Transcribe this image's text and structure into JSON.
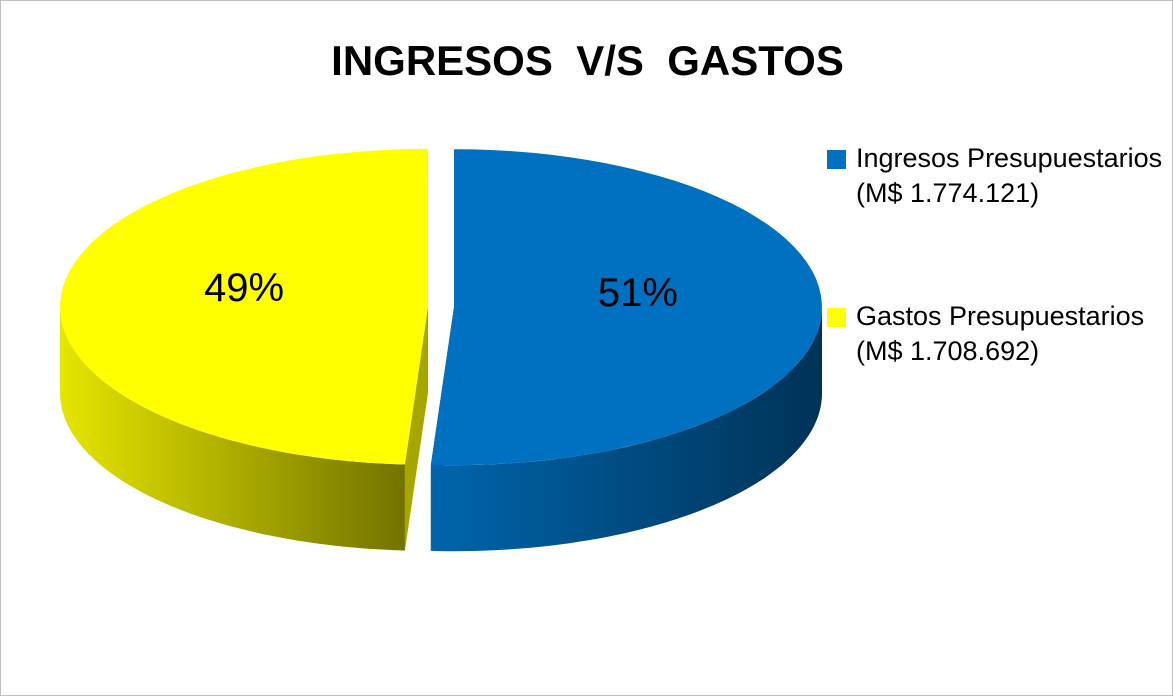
{
  "chart_data": {
    "type": "pie3d",
    "title": "INGRESOS  V/S  GASTOS",
    "categories": [
      "Ingresos Presupuestarios (M$ 1.774.121)",
      "Gastos Presupuestarios (M$ 1.708.692)"
    ],
    "values": [
      51,
      49
    ],
    "value_labels": [
      "51%",
      "49%"
    ],
    "colors": [
      "#0070c0",
      "#ffff00"
    ],
    "legend": "right"
  }
}
